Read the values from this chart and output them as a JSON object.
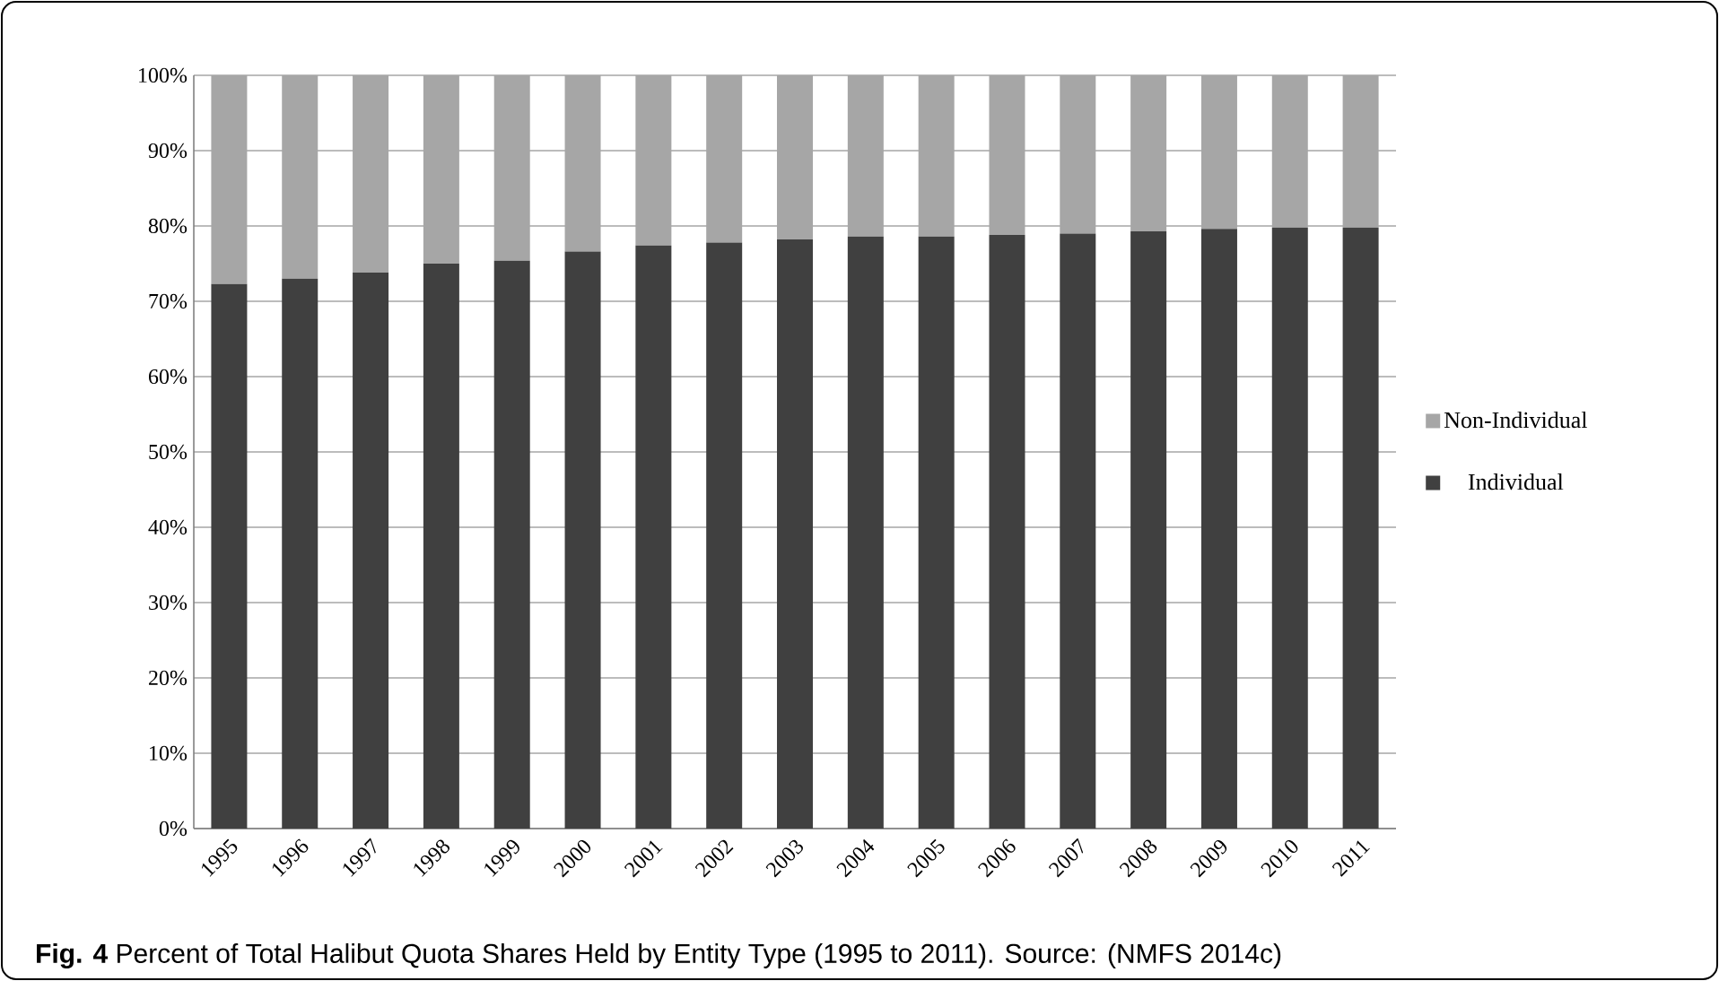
{
  "chart_data": {
    "type": "bar",
    "stacked": true,
    "categories": [
      "1995",
      "1996",
      "1997",
      "1998",
      "1999",
      "2000",
      "2001",
      "2002",
      "2003",
      "2004",
      "2005",
      "2006",
      "2007",
      "2008",
      "2009",
      "2010",
      "2011"
    ],
    "series": [
      {
        "name": "Individual",
        "color": "#404040",
        "values": [
          72.3,
          73.0,
          73.8,
          75.0,
          75.4,
          76.6,
          77.4,
          77.8,
          78.2,
          78.6,
          78.6,
          78.8,
          79.0,
          79.3,
          79.6,
          79.8,
          79.8
        ]
      },
      {
        "name": "Non-Individual",
        "color": "#a6a6a6",
        "values": [
          27.7,
          27.0,
          26.2,
          25.0,
          24.6,
          23.4,
          22.6,
          22.2,
          21.8,
          21.4,
          21.4,
          21.2,
          21.0,
          20.7,
          20.4,
          20.2,
          20.2
        ]
      }
    ],
    "ylim": [
      0,
      100
    ],
    "yticks": [
      {
        "value": 0,
        "label": "0%"
      },
      {
        "value": 10,
        "label": "10%"
      },
      {
        "value": 20,
        "label": "20%"
      },
      {
        "value": 30,
        "label": "30%"
      },
      {
        "value": 40,
        "label": "40%"
      },
      {
        "value": 50,
        "label": "50%"
      },
      {
        "value": 60,
        "label": "60%"
      },
      {
        "value": 70,
        "label": "70%"
      },
      {
        "value": 80,
        "label": "80%"
      },
      {
        "value": 90,
        "label": "90%"
      },
      {
        "value": 100,
        "label": "100%"
      }
    ],
    "grid": "y",
    "legend": "right",
    "annotations": [
      "**Fig. 4** Percent of Total Halibut Quota Shares Held by Entity Type (1995 to 2011). Source: (NMFS 2014c)"
    ]
  }
}
